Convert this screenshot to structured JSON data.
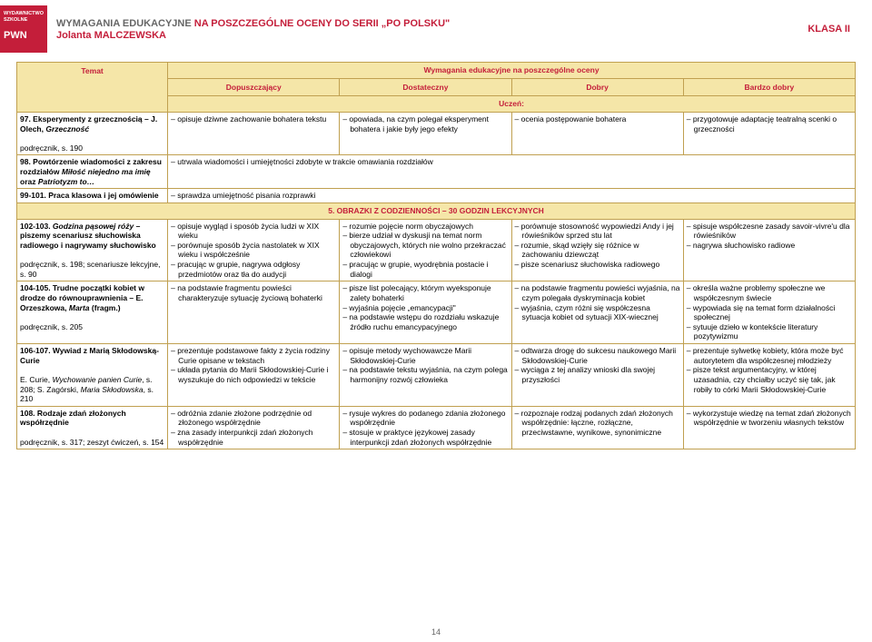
{
  "header": {
    "logo_line1": "WYDAWNICTWO",
    "logo_line2": "SZKOLNE",
    "logo_pwn": "PWN",
    "title_prefix": "WYMAGANIA EDUKACYJNE ",
    "title_red": "NA POSZCZEGÓLNE OCENY DO SERII „PO POLSKU\"",
    "author": "Jolanta MALCZEWSKA",
    "class": "KLASA II"
  },
  "table": {
    "h_topic": "Temat",
    "h_span": "Wymagania edukacyjne na poszczególne oceny",
    "h_dop": "Dopuszczający",
    "h_dost": "Dostateczny",
    "h_dobry": "Dobry",
    "h_bdobry": "Bardzo dobry",
    "h_uczen": "Uczeń:",
    "section5": "5. OBRAZKI Z CODZIENNOŚCI – 30 GODZIN LEKCYJNYCH",
    "r97": {
      "topic_a": "97. Eksperymenty z grzecznością – J. Olech, ",
      "topic_i": "Grzeczność",
      "topic_b": "podręcznik, s. 190",
      "dop": "opisuje dziwne zachowanie bohatera tekstu",
      "dost": "opowiada, na czym polegał eksperyment bohatera i jakie były jego efekty",
      "dobry": "ocenia postępowanie bohatera",
      "bdobry": "przygotowuje adaptację teatralną scenki o grzeczności"
    },
    "r98": {
      "topic_a": "98. Powtórzenie wiadomości z zakresu rozdziałów ",
      "topic_i1": "Miłość niejedno ma imię",
      "topic_mid": " oraz ",
      "topic_i2": "Patriotyzm to…",
      "merged": "utrwala wiadomości i umiejętności zdobyte w trakcie omawiania rozdziałów"
    },
    "r99": {
      "topic_a": "99-101. Praca klasowa i jej omówienie",
      "merged": "sprawdza umiejętność pisania rozprawki"
    },
    "r102": {
      "topic_a": "102-103. ",
      "topic_i": "Godzina pąsowej róży",
      "topic_b": " – piszemy scenariusz słuchowiska radiowego i nagrywamy słuchowisko",
      "topic_c": "podręcznik, s. 198; scenariusze lekcyjne, s. 90",
      "dop1": "opisuje wygląd i sposób życia ludzi w XIX wieku",
      "dop2": "porównuje sposób życia nastolatek w XIX wieku i współcześnie",
      "dop3": "pracując w grupie, nagrywa odgłosy przedmiotów oraz tła do audycji",
      "dost1": "rozumie pojęcie norm obyczajowych",
      "dost2": "bierze udział w dyskusji na temat norm obyczajowych, których nie wolno przekraczać człowiekowi",
      "dost3": "pracując w grupie, wyodrębnia postacie i dialogi",
      "dobry1": "porównuje stosowność wypowiedzi Andy i jej rówieśników sprzed stu lat",
      "dobry2": "rozumie, skąd wzięły się różnice w zachowaniu dziewcząt",
      "dobry3": "pisze scenariusz słuchowiska radiowego",
      "bd1": "spisuje współczesne zasady savoir-vivre'u dla rówieśników",
      "bd2": "nagrywa słuchowisko radiowe"
    },
    "r104": {
      "topic_a": "104-105. Trudne początki kobiet w drodze do równouprawnienia – E. Orzeszkowa, ",
      "topic_i": "Marta",
      "topic_b": " (fragm.)",
      "topic_c": "podręcznik, s. 205",
      "dop1": "na podstawie fragmentu powieści charakteryzuje sytuację życiową bohaterki",
      "dost1": "pisze list polecający, którym wyeksponuje zalety bohaterki",
      "dost2": "wyjaśnia pojęcie „emancypacji\"",
      "dost3": "na podstawie wstępu do rozdziału wskazuje źródło ruchu emancypacyjnego",
      "dobry1": "na podstawie fragmentu powieści wyjaśnia, na czym polegała dyskryminacja kobiet",
      "dobry2": "wyjaśnia, czym różni się współczesna sytuacja kobiet od sytuacji XIX-wiecznej",
      "bd1": "określa ważne problemy społeczne we współczesnym świecie",
      "bd2": "wypowiada się na temat form działalności społecznej",
      "bd3": "sytuuje dzieło w kontekście literatury pozytywizmu"
    },
    "r106": {
      "topic_a": "106-107. Wywiad z Marią Skłodowską-Curie",
      "topic_b": "E. Curie, ",
      "topic_i1": "Wychowanie panien Curie",
      "topic_c": ", s. 208; S. Zagórski, ",
      "topic_i2": "Maria Skłodowska",
      "topic_d": ", s. 210",
      "dop1": "prezentuje podstawowe fakty z życia rodziny Curie opisane w tekstach",
      "dop2": "układa pytania do Marii Skłodowskiej-Curie i wyszukuje do nich odpowiedzi w tekście",
      "dost1": "opisuje metody wychowawcze Marii Skłodowskiej-Curie",
      "dost2": "na podstawie tekstu wyjaśnia, na czym polega harmonijny rozwój człowieka",
      "dobry1": "odtwarza drogę do sukcesu naukowego Marii Skłodowskiej-Curie",
      "dobry2": "wyciąga z tej analizy wnioski dla swojej przyszłości",
      "bd1": "prezentuje sylwetkę kobiety, która może być autorytetem dla współczesnej młodzieży",
      "bd2": "pisze tekst argumentacyjny, w której uzasadnia, czy chciałby uczyć się tak, jak robiły to córki Marii Skłodowskiej-Curie"
    },
    "r108": {
      "topic_a": "108. Rodzaje zdań złożonych współrzędnie",
      "topic_b": "podręcznik, s. 317; zeszyt ćwiczeń, s. 154",
      "dop1": "odróżnia zdanie złożone podrzędnie od złożonego współrzędnie",
      "dop2": "zna zasady interpunkcji zdań złożonych współrzędnie",
      "dost1": "rysuje wykres do podanego zdania złożonego współrzędnie",
      "dost2": "stosuje w praktyce językowej zasady interpunkcji zdań złożonych współrzędnie",
      "dobry1": "rozpoznaje rodzaj podanych zdań złożonych współrzędnie: łączne, rozłączne, przeciwstawne, wynikowe, synonimiczne",
      "bd1": "wykorzystuje wiedzę na temat zdań złożonych współrzędnie w tworzeniu własnych tekstów"
    }
  },
  "page_num": "14"
}
